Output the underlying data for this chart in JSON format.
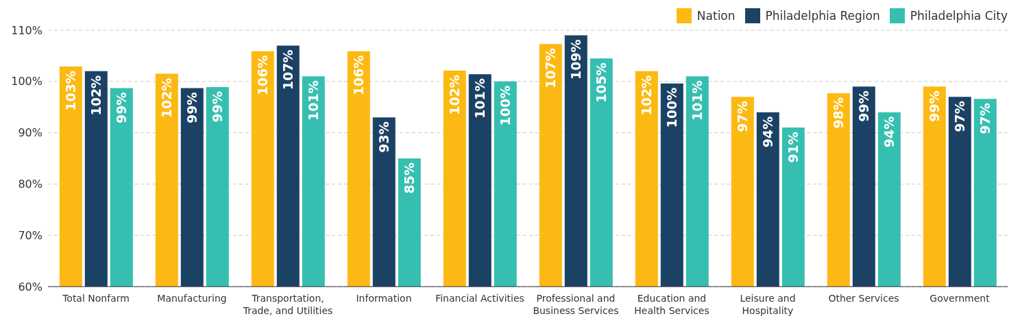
{
  "chart_data": {
    "type": "bar",
    "categories": [
      "Total Nonfarm",
      "Manufacturing",
      "Transportation, Trade, and Utilities",
      "Information",
      "Financial Activities",
      "Professional and Business Services",
      "Education and Health Services",
      "Leisure and Hospitality",
      "Other Services",
      "Government"
    ],
    "series": [
      {
        "name": "Nation",
        "color": "#fdb913",
        "values": [
          102.9,
          101.5,
          105.9,
          105.9,
          102.1,
          107.3,
          102,
          97,
          97.7,
          99
        ],
        "value_labels": [
          "103%",
          "102%",
          "106%",
          "106%",
          "102%",
          "107%",
          "102%",
          "97%",
          "98%",
          "99%"
        ]
      },
      {
        "name": "Philadelphia Region",
        "color": "#1b4264",
        "values": [
          102,
          98.7,
          107,
          93,
          101.4,
          109,
          99.6,
          94,
          99,
          97
        ],
        "value_labels": [
          "102%",
          "99%",
          "107%",
          "93%",
          "101%",
          "109%",
          "100%",
          "94%",
          "99%",
          "97%"
        ]
      },
      {
        "name": "Philadelphia City",
        "color": "#36bfb1",
        "values": [
          98.7,
          98.9,
          101,
          85,
          100,
          104.5,
          101,
          91,
          94,
          96.6
        ],
        "value_labels": [
          "99%",
          "99%",
          "101%",
          "85%",
          "100%",
          "105%",
          "101%",
          "91%",
          "94%",
          "97%"
        ]
      }
    ],
    "ylim": [
      60,
      110
    ],
    "yticks": [
      {
        "value": 60,
        "label": "60%"
      },
      {
        "value": 70,
        "label": "70%"
      },
      {
        "value": 80,
        "label": "80%"
      },
      {
        "value": 90,
        "label": "90%"
      },
      {
        "value": 100,
        "label": "100%"
      },
      {
        "value": 110,
        "label": "110%"
      }
    ],
    "grid": "y",
    "legend": "top right"
  }
}
